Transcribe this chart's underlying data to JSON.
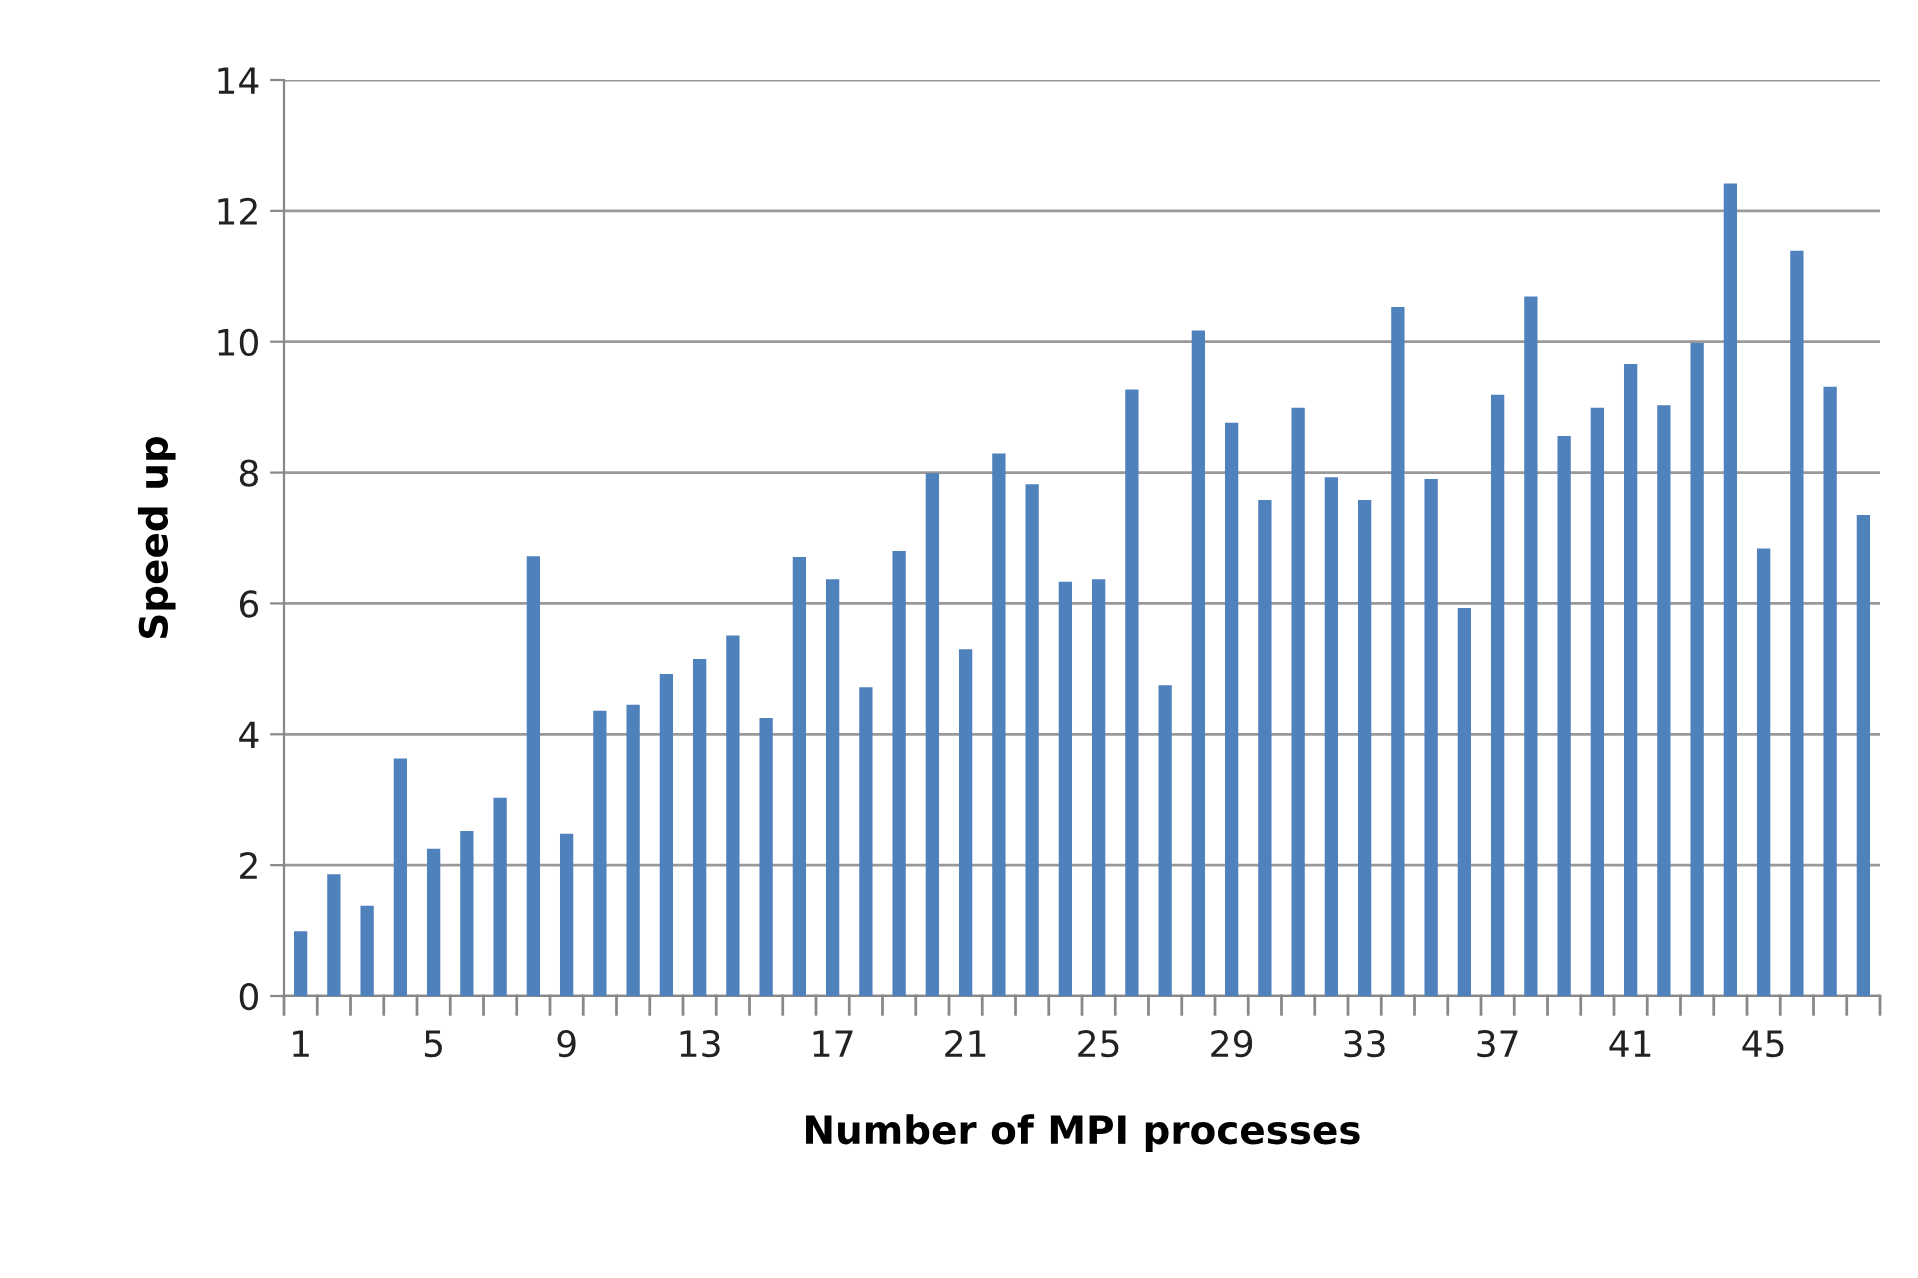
{
  "chart_data": {
    "type": "bar",
    "xlabel": "Number of MPI processes",
    "ylabel": "Speed up",
    "categories": [
      "1",
      null,
      null,
      null,
      "5",
      null,
      null,
      null,
      "9",
      null,
      null,
      null,
      "13",
      null,
      null,
      null,
      "17",
      null,
      null,
      null,
      "21",
      null,
      null,
      null,
      "25",
      null,
      null,
      null,
      "29",
      null,
      null,
      null,
      "33",
      null,
      null,
      null,
      "37",
      null,
      null,
      null,
      "41",
      null,
      null,
      null,
      "45",
      null,
      null,
      null
    ],
    "values": [
      0.99,
      1.86,
      1.38,
      3.63,
      2.25,
      2.52,
      3.03,
      6.72,
      2.48,
      4.36,
      4.45,
      4.92,
      5.15,
      5.51,
      4.25,
      6.71,
      6.37,
      4.72,
      6.8,
      7.99,
      5.3,
      8.29,
      7.82,
      6.33,
      6.37,
      9.27,
      4.75,
      10.17,
      8.76,
      7.58,
      8.99,
      7.93,
      7.58,
      10.53,
      7.9,
      5.93,
      9.19,
      10.69,
      8.56,
      8.99,
      9.66,
      9.03,
      9.98,
      12.42,
      6.84,
      11.39,
      9.31,
      7.35
    ],
    "color": "#4f81bd",
    "ylim": [
      0,
      14
    ],
    "yticks": [
      0,
      2,
      4,
      6,
      8,
      10,
      12,
      14
    ],
    "grid": "y",
    "legend": false
  }
}
